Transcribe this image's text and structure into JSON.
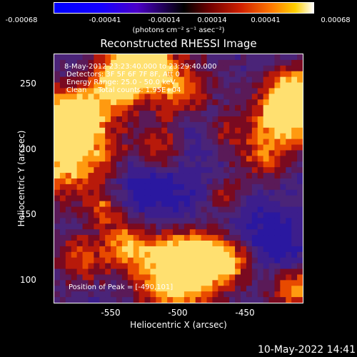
{
  "colorbar": {
    "ticks": [
      "-0.00068",
      "-0.00041",
      "-0.00014",
      "0.00014",
      "0.00041",
      "0.00068"
    ],
    "unit_label": "(photons cm⁻² s⁻¹ asec⁻²)"
  },
  "chart_data": {
    "type": "heatmap",
    "title": "Reconstructed RHESSI Image",
    "xlabel": "Heliocentric X (arcsec)",
    "ylabel": "Heliocentric Y (arcsec)",
    "xlim": [
      -595,
      -408
    ],
    "ylim": [
      82,
      273
    ],
    "xticks": [
      -550,
      -500,
      -450
    ],
    "yticks": [
      250,
      200,
      150,
      100
    ],
    "zlim": [
      -0.00068,
      0.00068
    ],
    "annotations": [
      "8-May-2012 23:23:40.000 to 23:29:40.000",
      "Detectors: 3F 5F 6F 7F 8F, Att 0",
      "Energy Range: 25.0 - 50.0 keV",
      "Clean     Total counts: 1.95E+04",
      "Position of Peak = [-490,101]"
    ],
    "peak": [
      -490,
      101
    ]
  },
  "timestamp": "10-May-2022 14:41"
}
